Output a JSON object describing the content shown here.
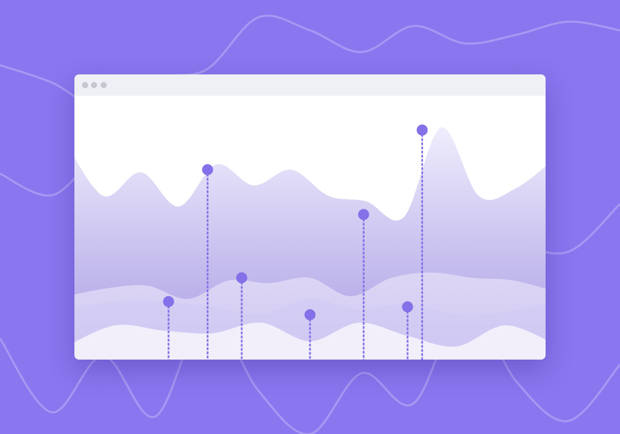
{
  "colors": {
    "background": "#8a76ef",
    "background_line": "#a898f3",
    "accent": "#8470e8",
    "titlebar": "#eef0f5",
    "window_dot": "#c5c8d0",
    "area_top": "#efedfc",
    "area_bottom": "#a99be4"
  },
  "window": {
    "controls": [
      "close-dot",
      "minimize-dot",
      "maximize-dot"
    ]
  },
  "chart_data": {
    "type": "area",
    "title": "",
    "xlabel": "",
    "ylabel": "",
    "grid": false,
    "legend": "none",
    "series": [
      {
        "values": [
          0.82,
          0.62,
          0.71,
          0.58,
          0.74,
          0.66,
          0.72,
          0.62,
          0.6,
          0.54,
          0.88,
          0.62,
          0.65,
          0.76
        ]
      },
      {
        "values": [
          0.24,
          0.27,
          0.28,
          0.23,
          0.3,
          0.29,
          0.31,
          0.24,
          0.31,
          0.33,
          0.31,
          0.3,
          0.26
        ]
      },
      {
        "values": [
          0.19,
          0.22,
          0.22,
          0.2,
          0.17,
          0.23,
          0.19,
          0.21,
          0.17,
          0.18,
          0.22
        ]
      },
      {
        "values": [
          0.05,
          0.13,
          0.11,
          0.1,
          0.14,
          0.07,
          0.14,
          0.09,
          0.05,
          0.13,
          0.06
        ]
      }
    ],
    "markers": [
      {
        "x": 0.21,
        "y": 0.22
      },
      {
        "x": 0.29,
        "y": 0.72
      },
      {
        "x": 0.36,
        "y": 0.31
      },
      {
        "x": 0.5,
        "y": 0.17
      },
      {
        "x": 0.61,
        "y": 0.55
      },
      {
        "x": 0.7,
        "y": 0.2
      },
      {
        "x": 0.73,
        "y": 0.87
      }
    ]
  }
}
